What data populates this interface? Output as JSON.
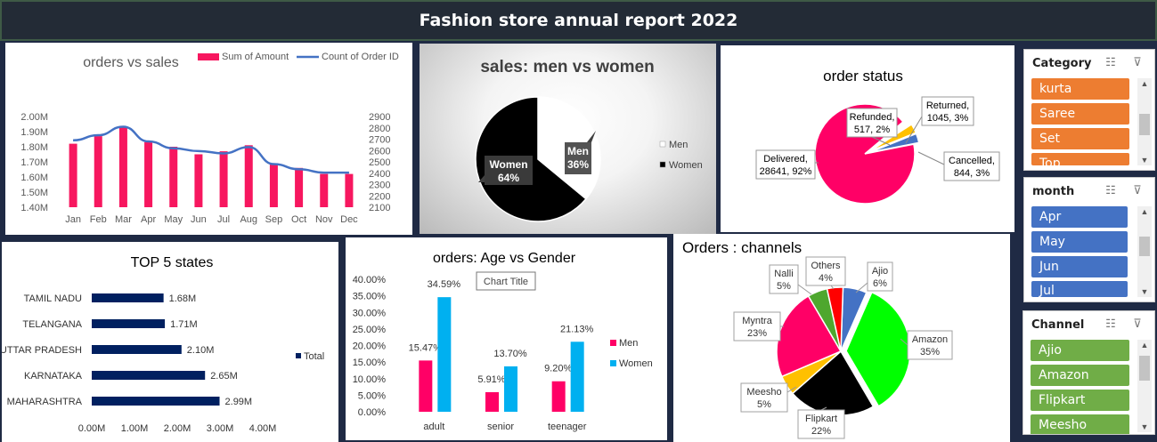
{
  "header": {
    "title": "Fashion store annual report 2022"
  },
  "chart_data": [
    {
      "id": "orders-vs-sales",
      "type": "bar",
      "title": "orders vs sales",
      "categories": [
        "Jan",
        "Feb",
        "Mar",
        "Apr",
        "May",
        "Jun",
        "Jul",
        "Aug",
        "Sep",
        "Oct",
        "Nov",
        "Dec"
      ],
      "series": [
        {
          "name": "Sum of Amount",
          "type": "bar",
          "axis": "left",
          "color": "#f7175f",
          "values": [
            1.82,
            1.87,
            1.93,
            1.83,
            1.8,
            1.75,
            1.77,
            1.81,
            1.69,
            1.66,
            1.62,
            1.62
          ]
        },
        {
          "name": "Count of Order ID",
          "type": "line",
          "axis": "right",
          "color": "#4472c4",
          "values": [
            2690,
            2735,
            2810,
            2680,
            2620,
            2595,
            2575,
            2630,
            2480,
            2435,
            2405,
            2405
          ]
        }
      ],
      "y_left": {
        "ylim": [
          1.4,
          2.0
        ],
        "ticks": [
          "1.40M",
          "1.50M",
          "1.60M",
          "1.70M",
          "1.80M",
          "1.90M",
          "2.00M"
        ]
      },
      "y_right": {
        "ylim": [
          2100,
          2900
        ],
        "ticks": [
          "2100",
          "2200",
          "2300",
          "2400",
          "2500",
          "2600",
          "2700",
          "2800",
          "2900"
        ]
      },
      "legend": "top-right"
    },
    {
      "id": "sales-men-vs-women",
      "type": "pie",
      "title": "sales: men vs women",
      "slices": [
        {
          "name": "Men",
          "value": 36,
          "label": "Men\n36%",
          "color": "#ffffff"
        },
        {
          "name": "Women",
          "value": 64,
          "label": "Women\n64%",
          "color": "#000000"
        }
      ],
      "legend": "right"
    },
    {
      "id": "order-status",
      "type": "pie",
      "title": "order status",
      "slices": [
        {
          "name": "Delivered",
          "value": 92,
          "label": "Delivered,\n28641, 92%",
          "color": "#ff0066"
        },
        {
          "name": "Refunded",
          "value": 2,
          "label": "Refunded,\n517, 2%",
          "color": "#ffffff"
        },
        {
          "name": "Returned",
          "value": 3,
          "label": "Returned,\n1045, 3%",
          "color": "#ffc000"
        },
        {
          "name": "Cancelled",
          "value": 3,
          "label": "Cancelled,\n844, 3%",
          "color": "#4472c4"
        }
      ]
    },
    {
      "id": "top-5-states",
      "type": "bar",
      "orientation": "horizontal",
      "title": "TOP  5 states",
      "categories": [
        "TAMIL NADU",
        "TELANGANA",
        "UTTAR PRADESH",
        "KARNATAKA",
        "MAHARASHTRA"
      ],
      "series": [
        {
          "name": "Total",
          "color": "#002060",
          "values": [
            1.68,
            1.71,
            2.1,
            2.65,
            2.99
          ]
        }
      ],
      "data_labels": [
        "1.68M",
        "1.71M",
        "2.10M",
        "2.65M",
        "2.99M"
      ],
      "xlim": [
        0,
        4
      ],
      "x_ticks": [
        "0.00M",
        "1.00M",
        "2.00M",
        "3.00M",
        "4.00M"
      ],
      "legend": "right"
    },
    {
      "id": "orders-age-vs-gender",
      "type": "bar",
      "title": "orders: Age vs Gender",
      "placeholder_title": "Chart Title",
      "categories": [
        "adult",
        "senior",
        "teenager"
      ],
      "series": [
        {
          "name": "Men",
          "color": "#ff0066",
          "values": [
            15.47,
            5.91,
            9.2
          ],
          "labels": [
            "15.47%",
            "5.91%",
            "9.20%"
          ]
        },
        {
          "name": "Women",
          "color": "#00b0f0",
          "values": [
            34.59,
            13.7,
            21.13
          ],
          "labels": [
            "34.59%",
            "13.70%",
            "21.13%"
          ]
        }
      ],
      "ylim": [
        0,
        40
      ],
      "y_ticks": [
        "0.00%",
        "5.00%",
        "10.00%",
        "15.00%",
        "20.00%",
        "25.00%",
        "30.00%",
        "35.00%",
        "40.00%"
      ],
      "legend": "right"
    },
    {
      "id": "orders-channels",
      "type": "pie",
      "title": "Orders : channels",
      "slices": [
        {
          "name": "Ajio",
          "value": 6,
          "label": "Ajio\n6%",
          "color": "#4472c4"
        },
        {
          "name": "Amazon",
          "value": 35,
          "label": "Amazon\n35%",
          "color": "#00ff00"
        },
        {
          "name": "Flipkart",
          "value": 22,
          "label": "Flipkart\n22%",
          "color": "#000000"
        },
        {
          "name": "Meesho",
          "value": 5,
          "label": "Meesho\n5%",
          "color": "#ffc000"
        },
        {
          "name": "Myntra",
          "value": 23,
          "label": "Myntra\n23%",
          "color": "#ff0066"
        },
        {
          "name": "Nalli",
          "value": 5,
          "label": "Nalli\n5%",
          "color": "#4ea72e"
        },
        {
          "name": "Others",
          "value": 4,
          "label": "Others\n4%",
          "color": "#ff0000"
        }
      ]
    }
  ],
  "slicers": {
    "category": {
      "title": "Category",
      "items": [
        "kurta",
        "Saree",
        "Set",
        "Top"
      ],
      "color": "#ed7d31"
    },
    "month": {
      "title": "month",
      "items": [
        "Apr",
        "May",
        "Jun",
        "Jul"
      ],
      "color": "#4472c4"
    },
    "channel": {
      "title": "Channel",
      "items": [
        "Ajio",
        "Amazon",
        "Flipkart",
        "Meesho"
      ],
      "color": "#70ad47"
    },
    "icons": {
      "multi_select": "multi-select-icon",
      "clear_filter": "clear-filter-icon"
    }
  }
}
